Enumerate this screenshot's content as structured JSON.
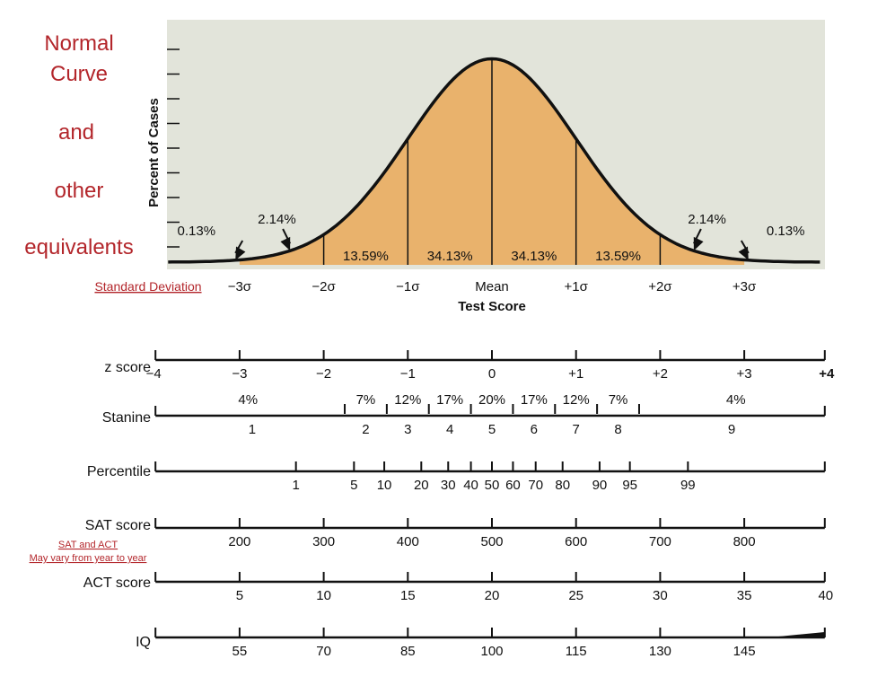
{
  "title": {
    "lines": [
      "Normal",
      "Curve",
      "and",
      "other",
      "equivalents"
    ]
  },
  "chart_data": {
    "type": "area",
    "title": "Normal Curve and other equivalents",
    "ylabel": "Percent of Cases",
    "xlabel": "Test Score",
    "sd_axis_label": "Standard Deviation",
    "x_range": [
      -4,
      4
    ],
    "sd_labels": [
      {
        "x": -3,
        "text": "−3σ"
      },
      {
        "x": -2,
        "text": "−2σ"
      },
      {
        "x": -1,
        "text": "−1σ"
      },
      {
        "x": 0,
        "text": "Mean"
      },
      {
        "x": 1,
        "text": "+1σ"
      },
      {
        "x": 2,
        "text": "+2σ"
      },
      {
        "x": 3,
        "text": "+3σ"
      }
    ],
    "segments": [
      {
        "x": -1.5,
        "text": "13.59%"
      },
      {
        "x": -0.5,
        "text": "34.13%"
      },
      {
        "x": 0.5,
        "text": "34.13%"
      },
      {
        "x": 1.5,
        "text": "13.59%"
      }
    ],
    "tail_labels": [
      {
        "x": -3,
        "text": "0.13%",
        "label_x": -3.3,
        "arrow_x": -3.05
      },
      {
        "x": -2.5,
        "text": "2.14%",
        "label_x": -2.45,
        "arrow_x": -2.4
      },
      {
        "x": 2.5,
        "text": "2.14%",
        "label_x": 2.45,
        "arrow_x": 2.4
      },
      {
        "x": 3,
        "text": "0.13%",
        "label_x": 3.3,
        "arrow_x": 3.05
      }
    ],
    "scales": [
      {
        "name": "z score",
        "italic_z": true,
        "labels": [
          {
            "x": -4,
            "text": "−4"
          },
          {
            "x": -3,
            "text": "−3"
          },
          {
            "x": -2,
            "text": "−2"
          },
          {
            "x": -1,
            "text": "−1"
          },
          {
            "x": 0,
            "text": "0"
          },
          {
            "x": 1,
            "text": "+1"
          },
          {
            "x": 2,
            "text": "+2"
          },
          {
            "x": 3,
            "text": "+3"
          },
          {
            "x": 4,
            "text": "+4"
          }
        ]
      },
      {
        "name": "Stanine",
        "boundaries": [
          -1.75,
          -1.25,
          -0.75,
          -0.25,
          0.25,
          0.75,
          1.25,
          1.75
        ],
        "percents": [
          {
            "x": -2.9,
            "text": "4%"
          },
          {
            "x": -1.5,
            "text": "7%"
          },
          {
            "x": -1.0,
            "text": "12%"
          },
          {
            "x": -0.5,
            "text": "17%"
          },
          {
            "x": 0.0,
            "text": "20%"
          },
          {
            "x": 0.5,
            "text": "17%"
          },
          {
            "x": 1.0,
            "text": "12%"
          },
          {
            "x": 1.5,
            "text": "7%"
          },
          {
            "x": 2.9,
            "text": "4%"
          }
        ],
        "labels": [
          {
            "x": -2.85,
            "text": "1"
          },
          {
            "x": -1.5,
            "text": "2"
          },
          {
            "x": -1.0,
            "text": "3"
          },
          {
            "x": -0.5,
            "text": "4"
          },
          {
            "x": 0.0,
            "text": "5"
          },
          {
            "x": 0.5,
            "text": "6"
          },
          {
            "x": 1.0,
            "text": "7"
          },
          {
            "x": 1.5,
            "text": "8"
          },
          {
            "x": 2.85,
            "text": "9"
          }
        ]
      },
      {
        "name": "Percentile",
        "labels": [
          {
            "x": -2.33,
            "text": "1"
          },
          {
            "x": -1.64,
            "text": "5"
          },
          {
            "x": -1.28,
            "text": "10"
          },
          {
            "x": -0.84,
            "text": "20"
          },
          {
            "x": -0.52,
            "text": "30"
          },
          {
            "x": -0.25,
            "text": "40"
          },
          {
            "x": 0.0,
            "text": "50"
          },
          {
            "x": 0.25,
            "text": "60"
          },
          {
            "x": 0.52,
            "text": "70"
          },
          {
            "x": 0.84,
            "text": "80"
          },
          {
            "x": 1.28,
            "text": "90"
          },
          {
            "x": 1.64,
            "text": "95"
          },
          {
            "x": 2.33,
            "text": "99"
          }
        ]
      },
      {
        "name": "SAT score",
        "note": [
          "SAT and ACT",
          "May vary from year to year"
        ],
        "labels": [
          {
            "x": -3,
            "text": "200"
          },
          {
            "x": -2,
            "text": "300"
          },
          {
            "x": -1,
            "text": "400"
          },
          {
            "x": 0,
            "text": "500"
          },
          {
            "x": 1,
            "text": "600"
          },
          {
            "x": 2,
            "text": "700"
          },
          {
            "x": 3,
            "text": "800"
          }
        ]
      },
      {
        "name": "ACT score",
        "labels": [
          {
            "x": -3,
            "text": "5"
          },
          {
            "x": -2,
            "text": "10"
          },
          {
            "x": -1,
            "text": "15"
          },
          {
            "x": 0,
            "text": "20"
          },
          {
            "x": 1,
            "text": "25"
          },
          {
            "x": 2,
            "text": "30"
          },
          {
            "x": 3,
            "text": "35"
          },
          {
            "x": 4,
            "text": "40"
          }
        ]
      },
      {
        "name": "IQ",
        "labels": [
          {
            "x": -3,
            "text": "55"
          },
          {
            "x": -2,
            "text": "70"
          },
          {
            "x": -1,
            "text": "85"
          },
          {
            "x": 0,
            "text": "100"
          },
          {
            "x": 1,
            "text": "115"
          },
          {
            "x": 2,
            "text": "130"
          },
          {
            "x": 3,
            "text": "145"
          }
        ]
      }
    ]
  },
  "colors": {
    "curve_fill": "#e9b26c",
    "panel_bg": "#e2e4da",
    "line": "#111111",
    "accent_red": "#b3262b"
  }
}
